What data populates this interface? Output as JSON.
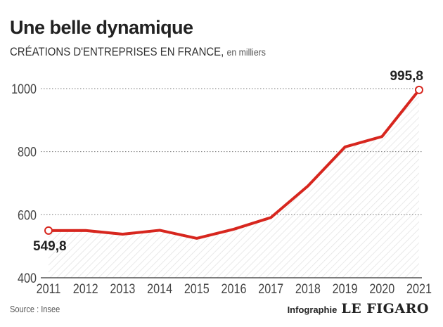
{
  "chart_data": {
    "type": "line",
    "title": "Une belle dynamique",
    "subtitle": "CRÉATIONS D'ENTREPRISES EN FRANCE,",
    "unit": "en milliers",
    "x": [
      "2011",
      "2012",
      "2013",
      "2014",
      "2015",
      "2016",
      "2017",
      "2018",
      "2019",
      "2020",
      "2021"
    ],
    "series": [
      {
        "name": "Créations d'entreprises",
        "values": [
          549.8,
          549.9,
          538.2,
          550.7,
          525.1,
          554.0,
          591.0,
          691.0,
          815.0,
          848.0,
          995.8
        ]
      }
    ],
    "ylim": [
      400,
      1000
    ],
    "yticks": [
      "400",
      "600",
      "800",
      "1000"
    ],
    "data_labels": {
      "first": "549,8",
      "last": "995,8"
    },
    "grid": true,
    "line_color": "#d7261e"
  },
  "footer": {
    "source": "Source : Insee",
    "credit": "Infographie",
    "brand": "LE FIGARO"
  }
}
